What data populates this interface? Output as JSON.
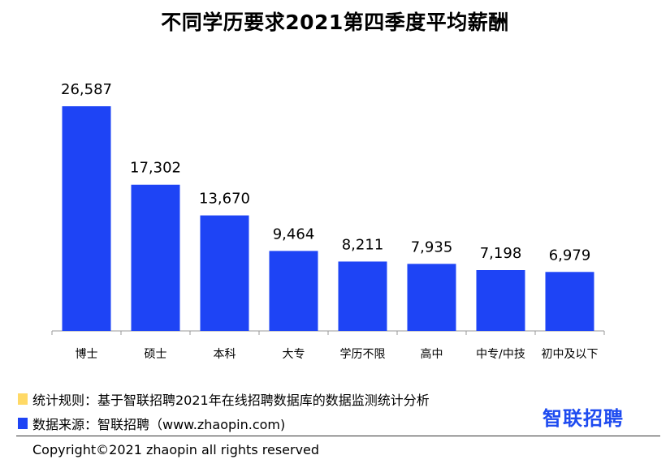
{
  "chart_data": {
    "type": "bar",
    "title": "不同学历要求2021第四季度平均薪酬",
    "categories": [
      "博士",
      "硕士",
      "本科",
      "大专",
      "学历不限",
      "高中",
      "中专/中技",
      "初中及以下"
    ],
    "values": [
      26587,
      17302,
      13670,
      9464,
      8211,
      7935,
      7198,
      6979
    ],
    "value_labels": [
      "26,587",
      "17,302",
      "13,670",
      "9,464",
      "8,211",
      "7,935",
      "7,198",
      "6,979"
    ],
    "ylim": [
      0,
      30000
    ],
    "grid": false,
    "bar_color": "#1e44f5",
    "xlabel": "",
    "ylabel": ""
  },
  "legend": [
    {
      "color": "#ffd966",
      "text": "统计规则：基于智联招聘2021年在线招聘数据库的数据监测统计分析"
    },
    {
      "color": "#1e44f5",
      "text": "数据来源：智联招聘（www.zhaopin.com)"
    }
  ],
  "brand": {
    "text": "智联招聘",
    "color": "#1e4bf0"
  },
  "footer": {
    "copyright": "Copyright©2021 zhaopin all rights reserved"
  }
}
